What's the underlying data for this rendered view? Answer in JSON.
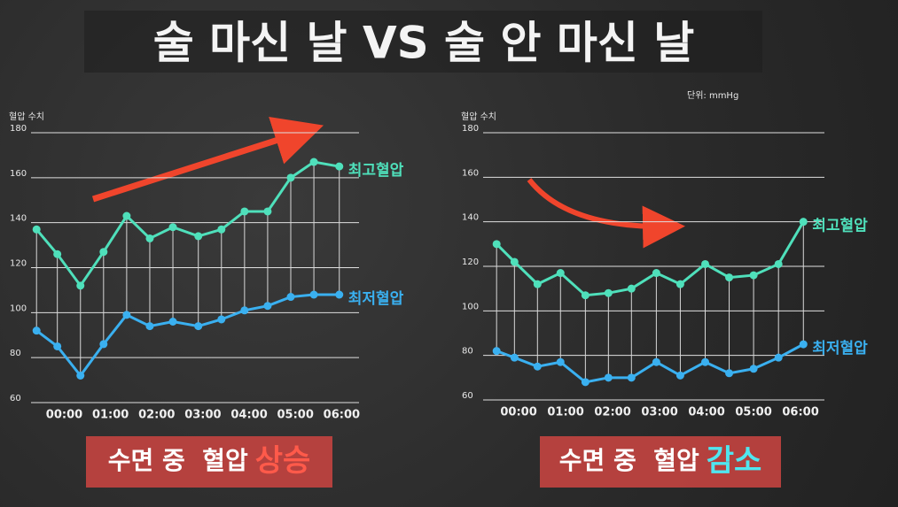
{
  "title": "술 마신 날 VS 술 안 마신 날",
  "unit": "단위: mmHg",
  "chart_data": [
    {
      "type": "line",
      "ylabel": "혈압 수치",
      "x": [
        -0.6,
        -0.15,
        0.35,
        0.85,
        1.35,
        1.85,
        2.35,
        2.9,
        3.4,
        3.9,
        4.4,
        4.9,
        5.4,
        5.95
      ],
      "xlim": [
        -0.7,
        6.3
      ],
      "xticks": [
        {
          "value": 0,
          "label": "00:00"
        },
        {
          "value": 1,
          "label": "01:00"
        },
        {
          "value": 2,
          "label": "02:00"
        },
        {
          "value": 3,
          "label": "03:00"
        },
        {
          "value": 4,
          "label": "04:00"
        },
        {
          "value": 5,
          "label": "05:00"
        },
        {
          "value": 6,
          "label": "06:00"
        }
      ],
      "ylim": [
        60,
        180
      ],
      "yticks": [
        60,
        80,
        100,
        120,
        140,
        160,
        180
      ],
      "grid": true,
      "series": [
        {
          "name": "최고혈압",
          "color": "#4fe0bb",
          "values": [
            137,
            126,
            112,
            127,
            143,
            133,
            138,
            134,
            137,
            145,
            145,
            160,
            167,
            165
          ]
        },
        {
          "name": "최저혈압",
          "color": "#3ab0f0",
          "values": [
            92,
            85,
            72,
            86,
            99,
            94,
            96,
            94,
            97,
            101,
            103,
            107,
            108,
            108
          ]
        }
      ],
      "caption": "수면 중  혈압",
      "caption_highlight": "상승",
      "highlight_color": "#ff5a4a"
    },
    {
      "type": "line",
      "ylabel": "혈압 수치",
      "x": [
        -0.47,
        -0.09,
        0.4,
        0.89,
        1.42,
        1.91,
        2.4,
        2.93,
        3.44,
        3.97,
        4.48,
        5.0,
        5.53,
        6.06
      ],
      "xlim": [
        -0.7,
        6.3
      ],
      "xticks": [
        {
          "value": 0,
          "label": "00:00"
        },
        {
          "value": 1,
          "label": "01:00"
        },
        {
          "value": 2,
          "label": "02:00"
        },
        {
          "value": 3,
          "label": "03:00"
        },
        {
          "value": 4,
          "label": "04:00"
        },
        {
          "value": 5,
          "label": "05:00"
        },
        {
          "value": 6,
          "label": "06:00"
        }
      ],
      "ylim": [
        60,
        180
      ],
      "yticks": [
        60,
        80,
        100,
        120,
        140,
        160,
        180
      ],
      "grid": true,
      "series": [
        {
          "name": "최고혈압",
          "color": "#4fe0bb",
          "values": [
            130,
            122,
            112,
            117,
            107,
            108,
            110,
            117,
            112,
            121,
            115,
            116,
            121,
            140
          ]
        },
        {
          "name": "최저혈압",
          "color": "#3ab0f0",
          "values": [
            82,
            79,
            75,
            77,
            68,
            70,
            70,
            77,
            71,
            77,
            72,
            74,
            79,
            85
          ]
        }
      ],
      "caption": "수면 중  혈압",
      "caption_highlight": "감소",
      "highlight_color": "#4fe6f0"
    }
  ]
}
